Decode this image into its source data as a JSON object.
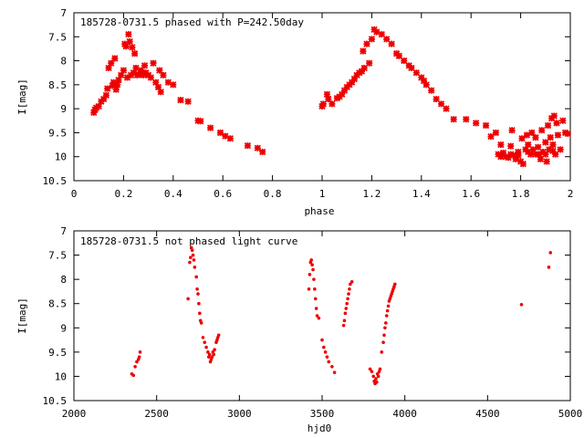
{
  "colors": {
    "marker": "#ee0000",
    "axis": "#000000",
    "background": "#ffffff"
  },
  "chart_data": [
    {
      "type": "scatter",
      "title": "185728-0731.5 phased with P=242.50day",
      "xlabel": "phase",
      "ylabel": "I[mag]",
      "xlim": [
        0,
        2
      ],
      "ylim": [
        7,
        10.5
      ],
      "y_inverted": true,
      "xticks": [
        "0",
        "0.2",
        "0.4",
        "0.6",
        "0.8",
        "1",
        "1.2",
        "1.4",
        "1.6",
        "1.8",
        "2"
      ],
      "yticks": [
        "7",
        "7.5",
        "8",
        "8.5",
        "9",
        "9.5",
        "10",
        "10.5"
      ],
      "marker": "cross",
      "series": [
        {
          "name": "phased",
          "points": [
            [
              0.08,
              9.08
            ],
            [
              0.085,
              9.02
            ],
            [
              0.09,
              8.98
            ],
            [
              0.1,
              8.95
            ],
            [
              0.11,
              8.85
            ],
            [
              0.12,
              8.8
            ],
            [
              0.13,
              8.72
            ],
            [
              0.135,
              8.58
            ],
            [
              0.14,
              8.15
            ],
            [
              0.15,
              8.05
            ],
            [
              0.155,
              8.52
            ],
            [
              0.16,
              8.45
            ],
            [
              0.165,
              7.95
            ],
            [
              0.17,
              8.6
            ],
            [
              0.175,
              8.5
            ],
            [
              0.18,
              8.4
            ],
            [
              0.19,
              8.3
            ],
            [
              0.2,
              8.2
            ],
            [
              0.205,
              7.65
            ],
            [
              0.21,
              7.7
            ],
            [
              0.215,
              8.35
            ],
            [
              0.22,
              7.45
            ],
            [
              0.225,
              7.6
            ],
            [
              0.23,
              8.3
            ],
            [
              0.235,
              7.72
            ],
            [
              0.24,
              8.25
            ],
            [
              0.245,
              7.85
            ],
            [
              0.25,
              8.15
            ],
            [
              0.255,
              8.3
            ],
            [
              0.26,
              8.28
            ],
            [
              0.27,
              8.2
            ],
            [
              0.275,
              8.25
            ],
            [
              0.28,
              8.3
            ],
            [
              0.285,
              8.1
            ],
            [
              0.29,
              8.25
            ],
            [
              0.3,
              8.3
            ],
            [
              0.31,
              8.35
            ],
            [
              0.32,
              8.05
            ],
            [
              0.33,
              8.45
            ],
            [
              0.34,
              8.55
            ],
            [
              0.345,
              8.2
            ],
            [
              0.35,
              8.65
            ],
            [
              0.36,
              8.3
            ],
            [
              0.38,
              8.45
            ],
            [
              0.4,
              8.5
            ],
            [
              0.43,
              8.82
            ],
            [
              0.46,
              8.85
            ],
            [
              0.5,
              9.25
            ],
            [
              0.51,
              9.26
            ],
            [
              0.55,
              9.4
            ],
            [
              0.59,
              9.5
            ],
            [
              0.61,
              9.57
            ],
            [
              0.63,
              9.62
            ],
            [
              0.7,
              9.77
            ],
            [
              0.74,
              9.82
            ],
            [
              0.76,
              9.9
            ],
            [
              1.0,
              8.95
            ],
            [
              1.005,
              8.9
            ],
            [
              1.02,
              8.7
            ],
            [
              1.025,
              8.8
            ],
            [
              1.04,
              8.9
            ],
            [
              1.06,
              8.78
            ],
            [
              1.07,
              8.75
            ],
            [
              1.08,
              8.7
            ],
            [
              1.09,
              8.62
            ],
            [
              1.1,
              8.55
            ],
            [
              1.11,
              8.5
            ],
            [
              1.12,
              8.45
            ],
            [
              1.13,
              8.38
            ],
            [
              1.14,
              8.3
            ],
            [
              1.15,
              8.25
            ],
            [
              1.16,
              8.22
            ],
            [
              1.165,
              7.8
            ],
            [
              1.17,
              8.15
            ],
            [
              1.18,
              7.65
            ],
            [
              1.19,
              8.05
            ],
            [
              1.2,
              7.55
            ],
            [
              1.21,
              7.35
            ],
            [
              1.22,
              7.4
            ],
            [
              1.24,
              7.45
            ],
            [
              1.26,
              7.55
            ],
            [
              1.28,
              7.65
            ],
            [
              1.3,
              7.85
            ],
            [
              1.31,
              7.9
            ],
            [
              1.33,
              8.0
            ],
            [
              1.35,
              8.1
            ],
            [
              1.36,
              8.15
            ],
            [
              1.38,
              8.25
            ],
            [
              1.4,
              8.35
            ],
            [
              1.41,
              8.42
            ],
            [
              1.42,
              8.5
            ],
            [
              1.44,
              8.62
            ],
            [
              1.46,
              8.8
            ],
            [
              1.48,
              8.9
            ],
            [
              1.5,
              9.0
            ],
            [
              1.53,
              9.22
            ],
            [
              1.58,
              9.22
            ],
            [
              1.62,
              9.3
            ],
            [
              1.66,
              9.35
            ],
            [
              1.68,
              9.58
            ],
            [
              1.7,
              9.5
            ],
            [
              1.71,
              9.95
            ],
            [
              1.72,
              10.0
            ],
            [
              1.73,
              9.92
            ],
            [
              1.74,
              10.0
            ],
            [
              1.75,
              10.02
            ],
            [
              1.76,
              9.95
            ],
            [
              1.765,
              9.45
            ],
            [
              1.77,
              9.97
            ],
            [
              1.78,
              10.05
            ],
            [
              1.79,
              9.98
            ],
            [
              1.8,
              10.1
            ],
            [
              1.805,
              9.62
            ],
            [
              1.81,
              10.15
            ],
            [
              1.82,
              9.85
            ],
            [
              1.825,
              9.55
            ],
            [
              1.83,
              9.75
            ],
            [
              1.84,
              9.95
            ],
            [
              1.845,
              9.5
            ],
            [
              1.85,
              9.85
            ],
            [
              1.86,
              9.6
            ],
            [
              1.87,
              9.8
            ],
            [
              1.875,
              9.95
            ],
            [
              1.88,
              10.05
            ],
            [
              1.885,
              9.45
            ],
            [
              1.89,
              9.9
            ],
            [
              1.9,
              9.7
            ],
            [
              1.905,
              10.1
            ],
            [
              1.91,
              9.35
            ],
            [
              1.915,
              9.85
            ],
            [
              1.92,
              9.6
            ],
            [
              1.925,
              9.2
            ],
            [
              1.93,
              9.75
            ],
            [
              1.935,
              9.15
            ],
            [
              1.94,
              9.95
            ],
            [
              1.945,
              9.3
            ],
            [
              1.95,
              9.55
            ],
            [
              1.96,
              9.85
            ],
            [
              1.97,
              9.25
            ],
            [
              1.98,
              9.5
            ],
            [
              1.99,
              9.52
            ],
            [
              1.72,
              9.75
            ],
            [
              1.76,
              9.78
            ],
            [
              1.79,
              9.9
            ],
            [
              1.83,
              9.9
            ],
            [
              1.86,
              9.95
            ],
            [
              1.9,
              9.95
            ],
            [
              1.93,
              9.88
            ]
          ]
        }
      ]
    },
    {
      "type": "scatter",
      "title": "185728-0731.5 not phased light curve",
      "xlabel": "hjd0",
      "ylabel": "I[mag]",
      "xlim": [
        2000,
        5000
      ],
      "ylim": [
        7,
        10.5
      ],
      "y_inverted": true,
      "xticks": [
        "2000",
        "2500",
        "3000",
        "3500",
        "4000",
        "4500",
        "5000"
      ],
      "yticks": [
        "7",
        "7.5",
        "8",
        "8.5",
        "9",
        "9.5",
        "10",
        "10.5"
      ],
      "marker": "dot",
      "series": [
        {
          "name": "light curve",
          "points": [
            [
              2350,
              9.95
            ],
            [
              2360,
              9.98
            ],
            [
              2370,
              9.8
            ],
            [
              2380,
              9.7
            ],
            [
              2390,
              9.65
            ],
            [
              2395,
              9.6
            ],
            [
              2400,
              9.5
            ],
            [
              2690,
              8.4
            ],
            [
              2700,
              7.65
            ],
            [
              2705,
              7.55
            ],
            [
              2710,
              7.35
            ],
            [
              2715,
              7.4
            ],
            [
              2720,
              7.5
            ],
            [
              2725,
              7.6
            ],
            [
              2730,
              7.75
            ],
            [
              2740,
              7.95
            ],
            [
              2745,
              8.2
            ],
            [
              2750,
              8.3
            ],
            [
              2755,
              8.5
            ],
            [
              2760,
              8.7
            ],
            [
              2765,
              8.85
            ],
            [
              2770,
              8.9
            ],
            [
              2780,
              9.2
            ],
            [
              2790,
              9.3
            ],
            [
              2800,
              9.4
            ],
            [
              2810,
              9.5
            ],
            [
              2815,
              9.6
            ],
            [
              2820,
              9.55
            ],
            [
              2825,
              9.7
            ],
            [
              2830,
              9.65
            ],
            [
              2835,
              9.6
            ],
            [
              2840,
              9.5
            ],
            [
              2845,
              9.55
            ],
            [
              2850,
              9.45
            ],
            [
              2860,
              9.3
            ],
            [
              2865,
              9.25
            ],
            [
              2870,
              9.2
            ],
            [
              2875,
              9.15
            ],
            [
              3420,
              8.2
            ],
            [
              3425,
              7.9
            ],
            [
              3430,
              7.65
            ],
            [
              3435,
              7.6
            ],
            [
              3440,
              7.7
            ],
            [
              3445,
              7.8
            ],
            [
              3450,
              8.0
            ],
            [
              3455,
              8.2
            ],
            [
              3460,
              8.4
            ],
            [
              3465,
              8.6
            ],
            [
              3470,
              8.75
            ],
            [
              3480,
              8.8
            ],
            [
              3500,
              9.25
            ],
            [
              3510,
              9.4
            ],
            [
              3520,
              9.5
            ],
            [
              3530,
              9.6
            ],
            [
              3540,
              9.7
            ],
            [
              3560,
              9.8
            ],
            [
              3575,
              9.92
            ],
            [
              3630,
              8.95
            ],
            [
              3635,
              8.85
            ],
            [
              3640,
              8.7
            ],
            [
              3645,
              8.6
            ],
            [
              3650,
              8.5
            ],
            [
              3655,
              8.4
            ],
            [
              3660,
              8.3
            ],
            [
              3665,
              8.2
            ],
            [
              3670,
              8.1
            ],
            [
              3680,
              8.05
            ],
            [
              3790,
              9.85
            ],
            [
              3800,
              9.9
            ],
            [
              3810,
              10.0
            ],
            [
              3815,
              10.1
            ],
            [
              3820,
              10.15
            ],
            [
              3825,
              10.05
            ],
            [
              3830,
              10.12
            ],
            [
              3835,
              9.95
            ],
            [
              3840,
              10.0
            ],
            [
              3845,
              9.9
            ],
            [
              3850,
              9.85
            ],
            [
              3860,
              9.5
            ],
            [
              3870,
              9.3
            ],
            [
              3875,
              9.15
            ],
            [
              3880,
              9.0
            ],
            [
              3885,
              8.9
            ],
            [
              3890,
              8.75
            ],
            [
              3895,
              8.65
            ],
            [
              3900,
              8.55
            ],
            [
              3905,
              8.45
            ],
            [
              3910,
              8.4
            ],
            [
              3915,
              8.35
            ],
            [
              3920,
              8.3
            ],
            [
              3925,
              8.25
            ],
            [
              3930,
              8.2
            ],
            [
              3935,
              8.15
            ],
            [
              3940,
              8.1
            ],
            [
              4705,
              8.52
            ],
            [
              4870,
              7.75
            ],
            [
              4880,
              7.45
            ]
          ]
        }
      ]
    }
  ]
}
